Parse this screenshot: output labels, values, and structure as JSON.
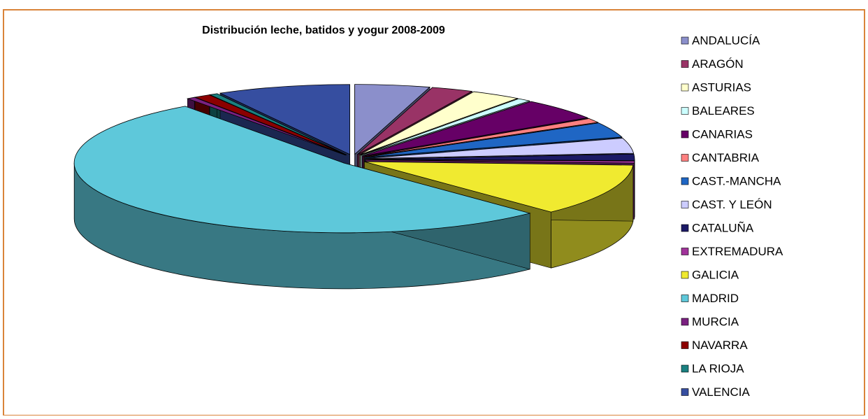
{
  "chart_data": {
    "type": "pie3d",
    "title": "Distribución leche, batidos y yogur 2008-2009",
    "categories": [
      "ANDALUCÍA",
      "ARAGÓN",
      "ASTURIAS",
      "BALEARES",
      "CANARIAS",
      "CANTABRIA",
      "CAST.-MANCHA",
      "CAST. Y LEÓN",
      "CATALUÑA",
      "EXTREMADURA",
      "GALICIA",
      "MADRID",
      "MURCIA",
      "NAVARRA",
      "LA RIOJA",
      "VALENCIA"
    ],
    "values": [
      4.5,
      2.5,
      3,
      0.8,
      5,
      1,
      3.5,
      3.5,
      1.5,
      0.5,
      12,
      52.2,
      0.5,
      1,
      0.5,
      8
    ],
    "colors": [
      "#8b8fcb",
      "#993366",
      "#ffffcc",
      "#ccffff",
      "#660066",
      "#ff8080",
      "#1f66c4",
      "#ccccff",
      "#1c1a66",
      "#a0329a",
      "#f0ea30",
      "#5ec8da",
      "#7a2080",
      "#8b0000",
      "#1a8080",
      "#364ea0"
    ],
    "legend": "right"
  }
}
